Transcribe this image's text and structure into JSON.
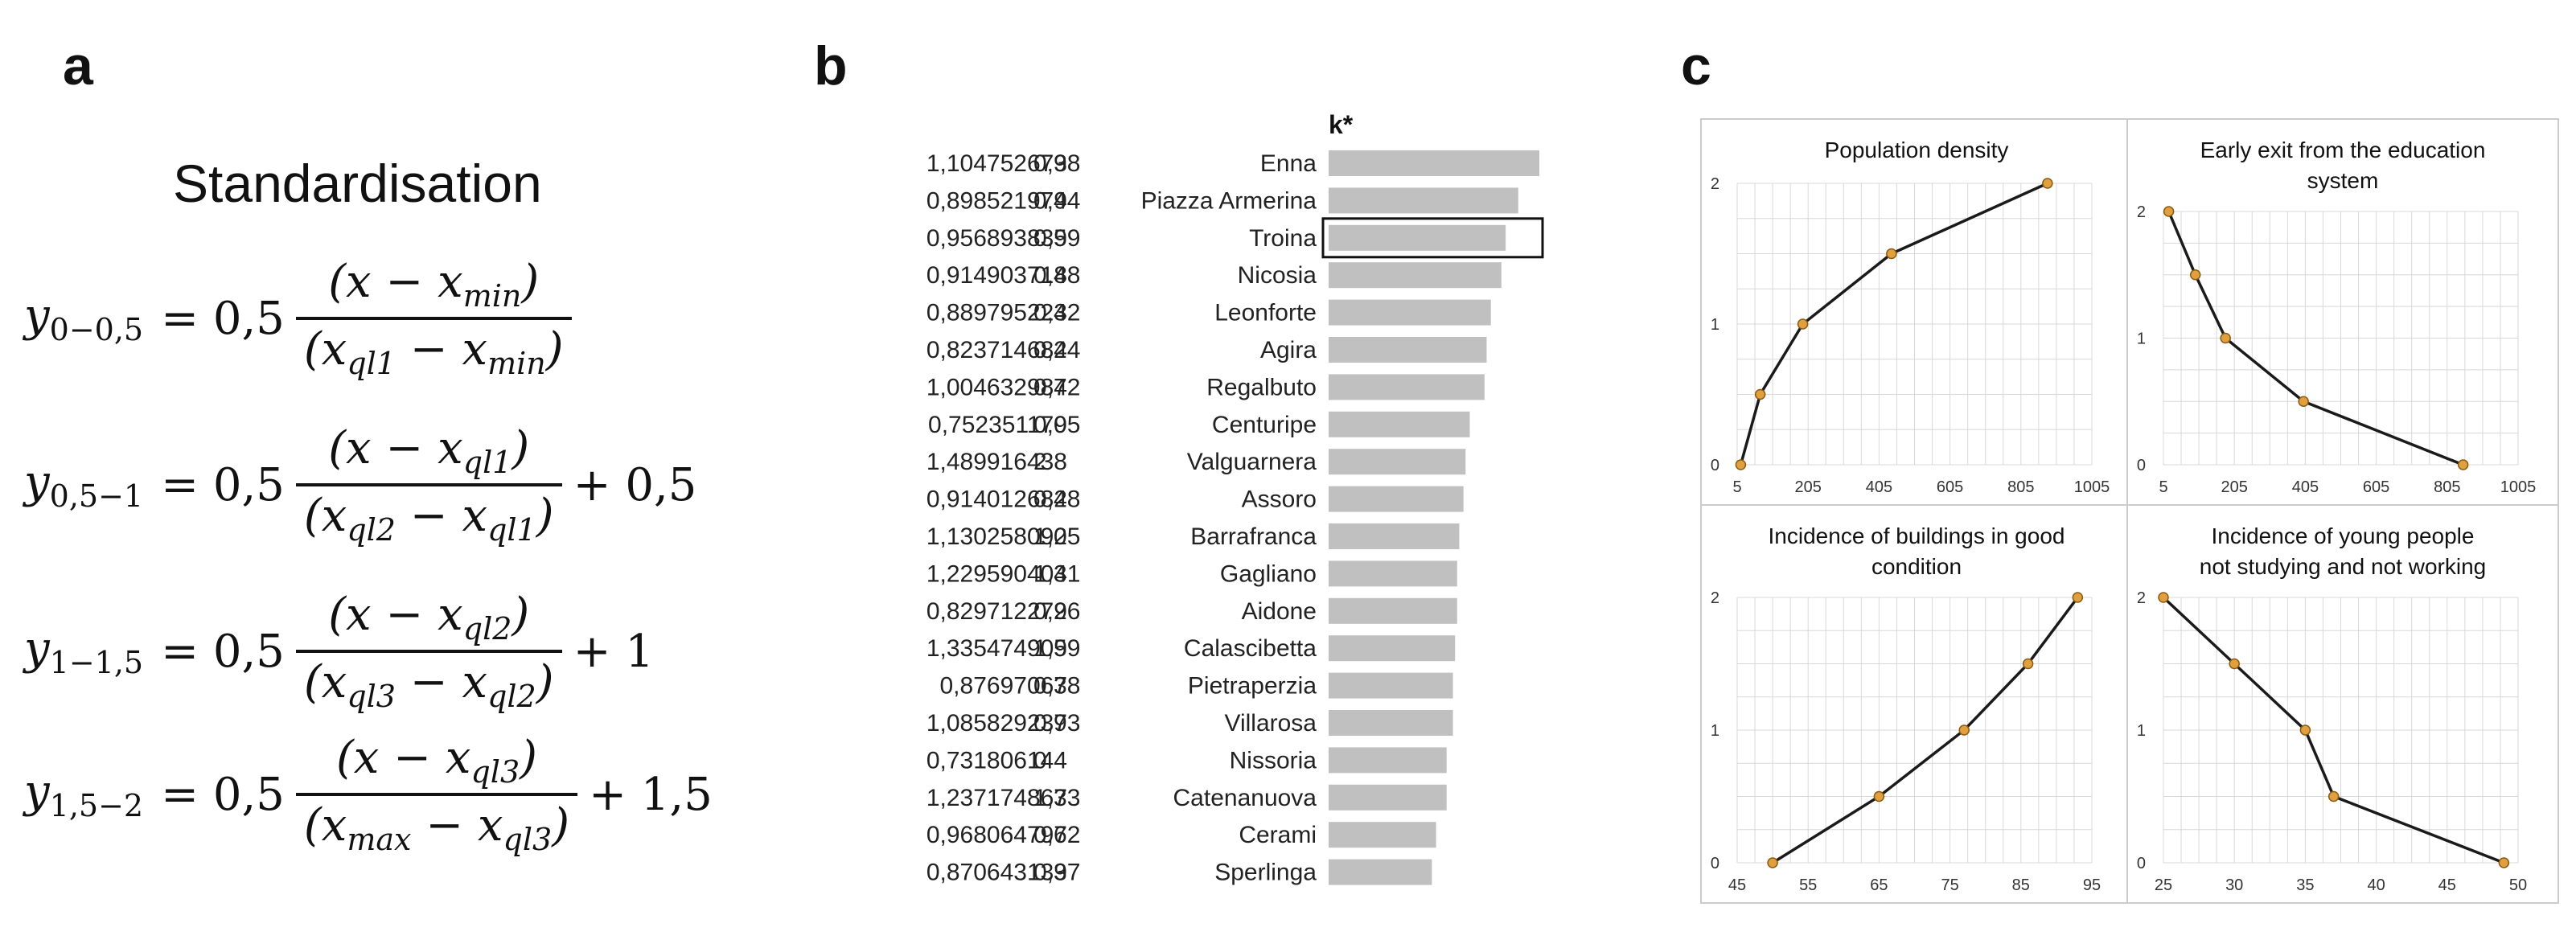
{
  "panel_labels": {
    "a": "a",
    "b": "b",
    "c": "c"
  },
  "panel_a": {
    "title": "Standardisation",
    "equations": [
      {
        "lhs": "y",
        "lhs_sub": "0−0,5",
        "coef": "= 0,5",
        "num": "(x − x",
        "num_sub": "min",
        "num_end": ")",
        "den": "(x",
        "den_sub1": "ql1",
        "den_mid": " − x",
        "den_sub2": "min",
        "den_end": ")",
        "tail": ""
      },
      {
        "lhs": "y",
        "lhs_sub": "0,5−1",
        "coef": "= 0,5",
        "num": "(x − x",
        "num_sub": "ql1",
        "num_end": ")",
        "den": "(x",
        "den_sub1": "ql2",
        "den_mid": " − x",
        "den_sub2": "ql1",
        "den_end": ")",
        "tail": "+ 0,5"
      },
      {
        "lhs": "y",
        "lhs_sub": "1−1,5",
        "coef": "= 0,5",
        "num": "(x − x",
        "num_sub": "ql2",
        "num_end": ")",
        "den": "(x",
        "den_sub1": "ql3",
        "den_mid": " − x",
        "den_sub2": "ql2",
        "den_end": ")",
        "tail": "+ 1"
      },
      {
        "lhs": "y",
        "lhs_sub": "1,5−2",
        "coef": "= 0,5",
        "num": "(x − x",
        "num_sub": "ql3",
        "num_end": ")",
        "den": "(x",
        "den_sub1": "max",
        "den_mid": " − x",
        "den_sub2": "ql3",
        "den_end": ")",
        "tail": "+ 1,5"
      }
    ]
  },
  "colors": {
    "bar": "#c0c0c0",
    "line": "#1a1a1a",
    "marker": "#e0a040",
    "grid": "#d8d8d8",
    "frame": "#cccccc"
  },
  "chart_data": [
    {
      "type": "bar",
      "orientation": "horizontal",
      "title": "k*",
      "highlighted": "Troina",
      "categories": [
        "Enna",
        "Piazza Armerina",
        "Troina",
        "Nicosia",
        "Leonforte",
        "Agira",
        "Regalbuto",
        "Centuripe",
        "Valguarnera",
        "Assoro",
        "Barrafranca",
        "Gagliano",
        "Aidone",
        "Calascibetta",
        "Pietraperzia",
        "Villarosa",
        "Nissoria",
        "Catenanuova",
        "Cerami",
        "Sperlinga"
      ],
      "col1": [
        "1,104752673",
        "0,898521979",
        "0,956893839",
        "0,914903718",
        "0,889795223",
        "0,823714684",
        "1,004632984",
        "0,752351179",
        "1,489916438",
        "0,914012682",
        "1,130258092",
        "1,229590404",
        "0,829712279",
        "1,335474909",
        "0,87697067",
        "1,085829237",
        "0,731806144",
        "1,237174867",
        "0,968064797",
        "0,870643139"
      ],
      "col2": [
        "0,98",
        "0,44",
        "0,59",
        "0,48",
        "0,42",
        "0,24",
        "0,72",
        "0,05",
        "2",
        "0,48",
        "1,05",
        "1,31",
        "0,26",
        "1,59",
        "0,38",
        "0,93",
        "0",
        "1,33",
        "0,62",
        "0,37"
      ],
      "values": [
        1.0,
        0.9,
        0.84,
        0.82,
        0.77,
        0.75,
        0.74,
        0.67,
        0.65,
        0.64,
        0.62,
        0.61,
        0.61,
        0.6,
        0.59,
        0.59,
        0.56,
        0.56,
        0.51,
        0.49
      ],
      "xlim": [
        0,
        1
      ]
    },
    {
      "type": "line",
      "title": [
        "Population density"
      ],
      "x": [
        15,
        70,
        190,
        440,
        880
      ],
      "y": [
        0,
        0.5,
        1,
        1.5,
        2
      ],
      "xticks": [
        5,
        205,
        405,
        605,
        805,
        1005
      ],
      "xlim": [
        5,
        1005
      ],
      "yticks": [
        0,
        1,
        2
      ],
      "ylim": [
        0,
        2
      ]
    },
    {
      "type": "line",
      "title": [
        "Early exit from the education",
        "system"
      ],
      "x": [
        20,
        95,
        180,
        400,
        850
      ],
      "y": [
        2,
        1.5,
        1,
        0.5,
        0
      ],
      "xticks": [
        5,
        205,
        405,
        605,
        805,
        1005
      ],
      "xlim": [
        5,
        1005
      ],
      "yticks": [
        0,
        1,
        2
      ],
      "ylim": [
        0,
        2
      ]
    },
    {
      "type": "line",
      "title": [
        "Incidence of buildings in good",
        "condition"
      ],
      "x": [
        50,
        65,
        77,
        86,
        93
      ],
      "y": [
        0,
        0.5,
        1,
        1.5,
        2
      ],
      "xticks": [
        45,
        55,
        65,
        75,
        85,
        95
      ],
      "xlim": [
        45,
        95
      ],
      "yticks": [
        0,
        1,
        2
      ],
      "ylim": [
        0,
        2
      ]
    },
    {
      "type": "line",
      "title": [
        "Incidence of young people",
        "not studying and not working"
      ],
      "x": [
        25,
        30,
        35,
        37,
        49
      ],
      "y": [
        2,
        1.5,
        1,
        0.5,
        0
      ],
      "xticks": [
        25,
        30,
        35,
        40,
        45,
        50
      ],
      "xlim": [
        25,
        50
      ],
      "yticks": [
        0,
        1,
        2
      ],
      "ylim": [
        0,
        2
      ]
    }
  ]
}
